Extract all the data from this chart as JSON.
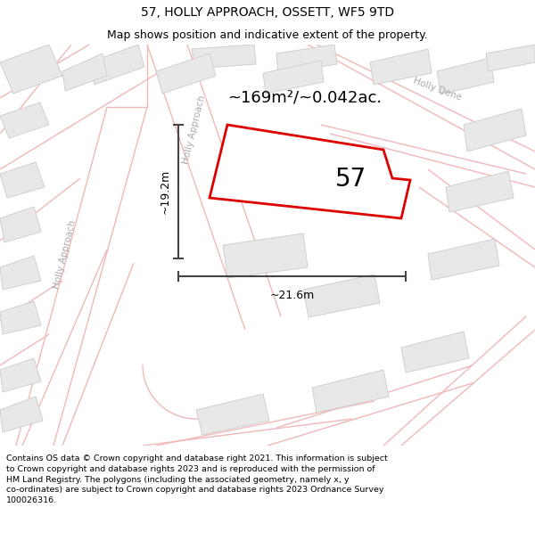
{
  "title": "57, HOLLY APPROACH, OSSETT, WF5 9TD",
  "subtitle": "Map shows position and indicative extent of the property.",
  "footer": "Contains OS data © Crown copyright and database right 2021. This information is subject to Crown copyright and database rights 2023 and is reproduced with the permission of HM Land Registry. The polygons (including the associated geometry, namely x, y co-ordinates) are subject to Crown copyright and database rights 2023 Ordnance Survey 100026316.",
  "area_label": "~169m²/~0.042ac.",
  "number_label": "57",
  "dim_height": "~19.2m",
  "dim_width": "~21.6m",
  "map_bg": "#f7f7f7",
  "road_line_color": "#f0b8b8",
  "property_fill": "#ffffff",
  "property_edge": "#dd0000",
  "building_fill": "#e8e8e8",
  "building_edge": "#d0d0d0",
  "dim_line_color": "#444444",
  "street_label_color": "#aaaaaa",
  "title_fontsize": 10,
  "subtitle_fontsize": 9,
  "footer_fontsize": 6.8
}
